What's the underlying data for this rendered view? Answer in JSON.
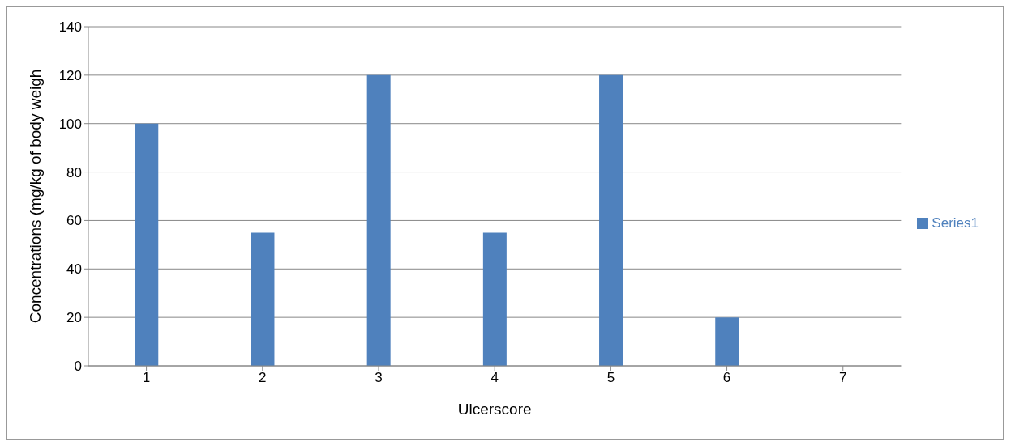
{
  "chart_data": {
    "type": "bar",
    "xlabel": "Ulcerscore",
    "ylabel": "Concentrations (mg/kg of body weigh",
    "categories": [
      "1",
      "2",
      "3",
      "4",
      "5",
      "6",
      "7"
    ],
    "series": [
      {
        "name": "Series1",
        "color": "#4f81bd",
        "values": [
          100,
          55,
          120,
          55,
          120,
          20,
          null
        ]
      }
    ],
    "ylim": [
      0,
      140
    ],
    "yticks": [
      0,
      20,
      40,
      60,
      80,
      100,
      120,
      140
    ],
    "grid": "y",
    "legend": "right"
  }
}
